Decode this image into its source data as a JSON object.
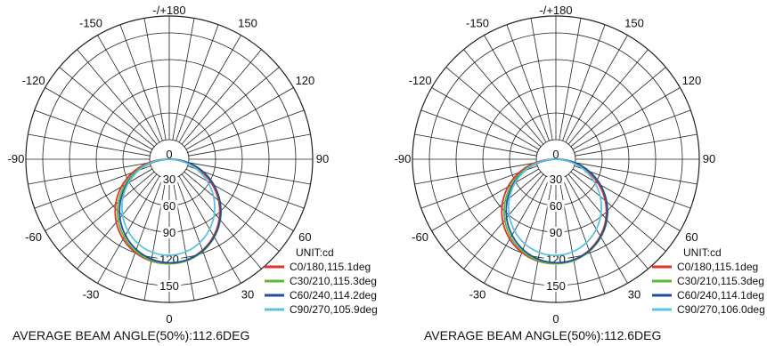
{
  "chart_data": [
    {
      "type": "polar",
      "angle_labels": {
        "-/+180": 180,
        "-150": -150,
        "150": 150,
        "-120": -120,
        "120": 120,
        "-90": -90,
        "90": 90,
        "-60": -60,
        "60": 60,
        "-30": -30,
        "30": 30,
        "0": 0
      },
      "radial_ticks": [
        0,
        30,
        60,
        90,
        120,
        150
      ],
      "unit": "UNIT:cd",
      "series": [
        {
          "name": "C0/180,115.1deg",
          "color": "#e0312b",
          "beam_angle": 115.1
        },
        {
          "name": "C30/210,115.3deg",
          "color": "#5db83a",
          "beam_angle": 115.3
        },
        {
          "name": "C60/240,114.2deg",
          "color": "#1f4f9e",
          "beam_angle": 114.2
        },
        {
          "name": "C90/270,105.9deg",
          "color": "#5cc3e0",
          "beam_angle": 105.9
        }
      ],
      "footer": "AVERAGE BEAM ANGLE(50%):112.6DEG"
    },
    {
      "type": "polar",
      "angle_labels": {
        "-/+180": 180,
        "-150": -150,
        "150": 150,
        "-120": -120,
        "120": 120,
        "-90": -90,
        "90": 90,
        "-60": -60,
        "60": 60,
        "-30": -30,
        "30": 30,
        "0": 0
      },
      "radial_ticks": [
        0,
        30,
        60,
        90,
        120,
        150
      ],
      "unit": "UNIT:cd",
      "series": [
        {
          "name": "C0/180,115.1deg",
          "color": "#e0312b",
          "beam_angle": 115.1
        },
        {
          "name": "C30/210,115.3deg",
          "color": "#5db83a",
          "beam_angle": 115.3
        },
        {
          "name": "C60/240,114.1deg",
          "color": "#1f4f9e",
          "beam_angle": 114.1
        },
        {
          "name": "C90/270,106.0deg",
          "color": "#5cc3e0",
          "beam_angle": 106.0
        }
      ],
      "footer": "AVERAGE BEAM ANGLE(50%):112.6DEG"
    }
  ]
}
